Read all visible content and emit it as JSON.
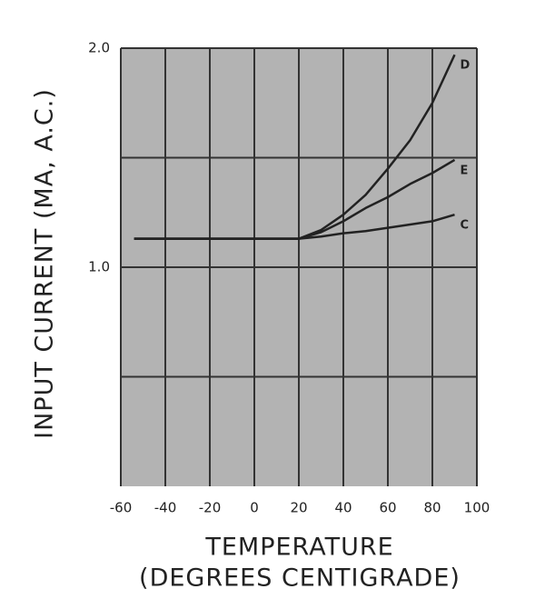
{
  "chart_data": {
    "type": "line",
    "ylabel": "INPUT CURRENT (MA, A.C.)",
    "xlabel": [
      "TEMPERATURE",
      "(DEGREES CENTIGRADE)"
    ],
    "x": [
      -54,
      -40,
      -20,
      0,
      20,
      30,
      40,
      50,
      60,
      70,
      80,
      90
    ],
    "series": [
      {
        "name": "D",
        "color": "#222222",
        "values": [
          1.13,
          1.13,
          1.13,
          1.13,
          1.13,
          1.17,
          1.24,
          1.33,
          1.45,
          1.58,
          1.75,
          1.97
        ]
      },
      {
        "name": "E",
        "color": "#222222",
        "values": [
          1.13,
          1.13,
          1.13,
          1.13,
          1.13,
          1.16,
          1.21,
          1.27,
          1.32,
          1.38,
          1.43,
          1.49
        ]
      },
      {
        "name": "C",
        "color": "#222222",
        "values": [
          1.13,
          1.13,
          1.13,
          1.13,
          1.13,
          1.14,
          1.155,
          1.165,
          1.18,
          1.195,
          1.21,
          1.24
        ]
      }
    ],
    "xlim": [
      -60,
      100
    ],
    "xticks": [
      -60,
      -40,
      -20,
      0,
      20,
      40,
      60,
      80,
      100
    ],
    "ylim": [
      0,
      2
    ],
    "yticks": [
      {
        "value": 1,
        "label": "1.0"
      },
      {
        "value": 2,
        "label": "2.0"
      }
    ],
    "ygrid": [
      0.5,
      1,
      1.5,
      2
    ],
    "grid": true
  }
}
